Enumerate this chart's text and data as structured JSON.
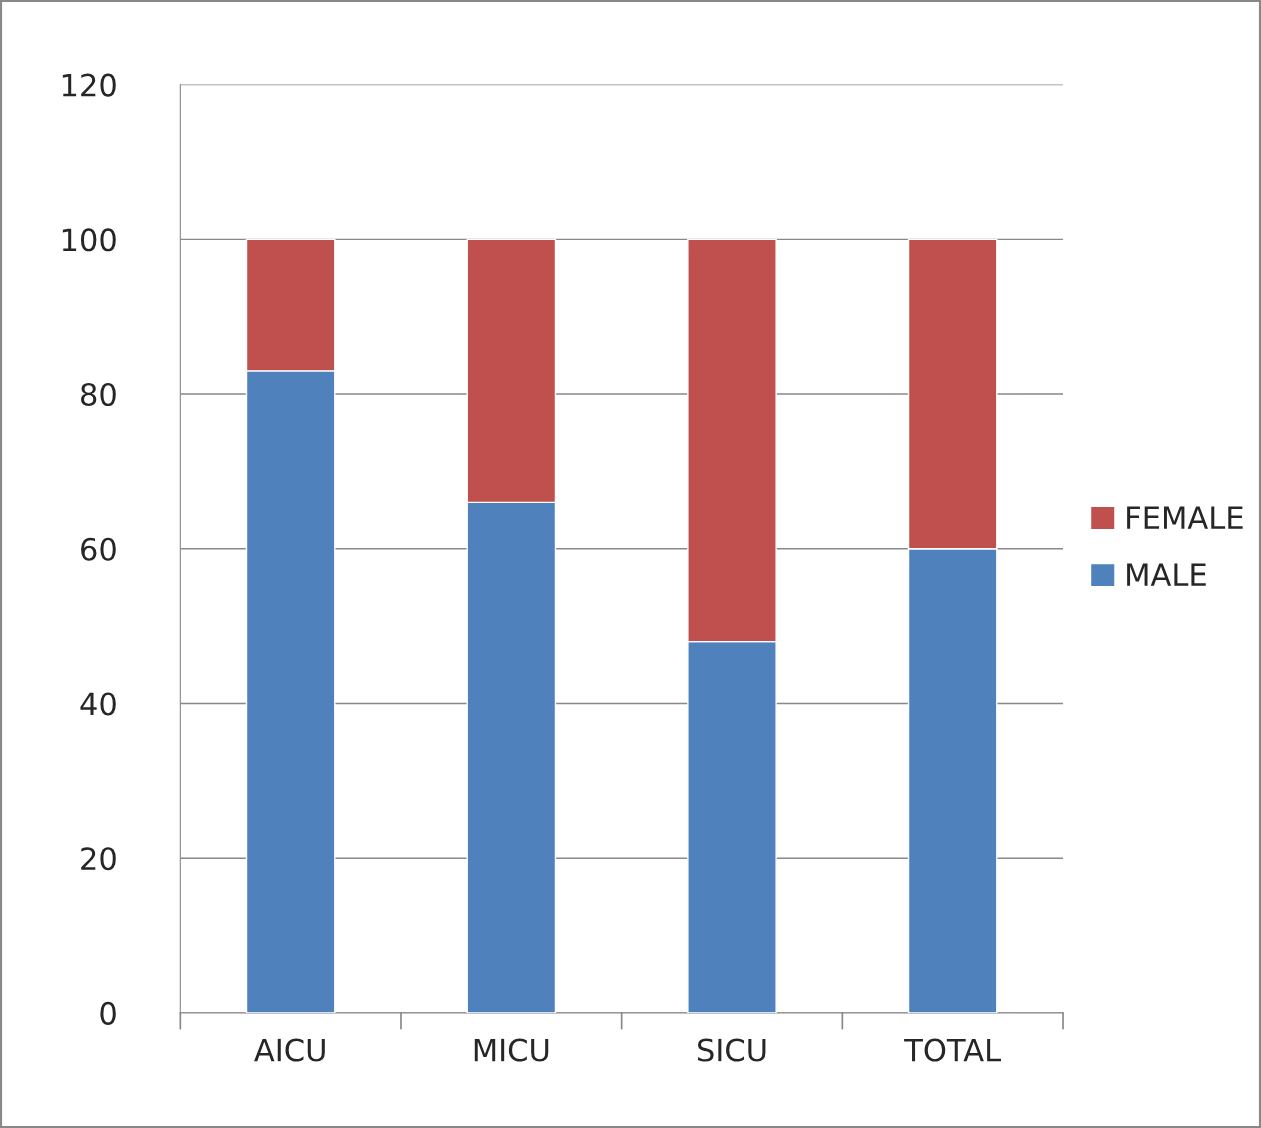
{
  "chart_data": {
    "type": "bar",
    "stacked": true,
    "categories": [
      "AICU",
      "MICU",
      "SICU",
      "TOTAL"
    ],
    "series": [
      {
        "name": "MALE",
        "color": "#4f81bd",
        "values": [
          83,
          66,
          48,
          60
        ]
      },
      {
        "name": "FEMALE",
        "color": "#c0504d",
        "values": [
          17,
          34,
          52,
          40
        ]
      }
    ],
    "ylim": [
      0,
      120
    ],
    "yticks": [
      0,
      20,
      40,
      60,
      80,
      100,
      120
    ],
    "grid": "y",
    "legend": "right"
  }
}
